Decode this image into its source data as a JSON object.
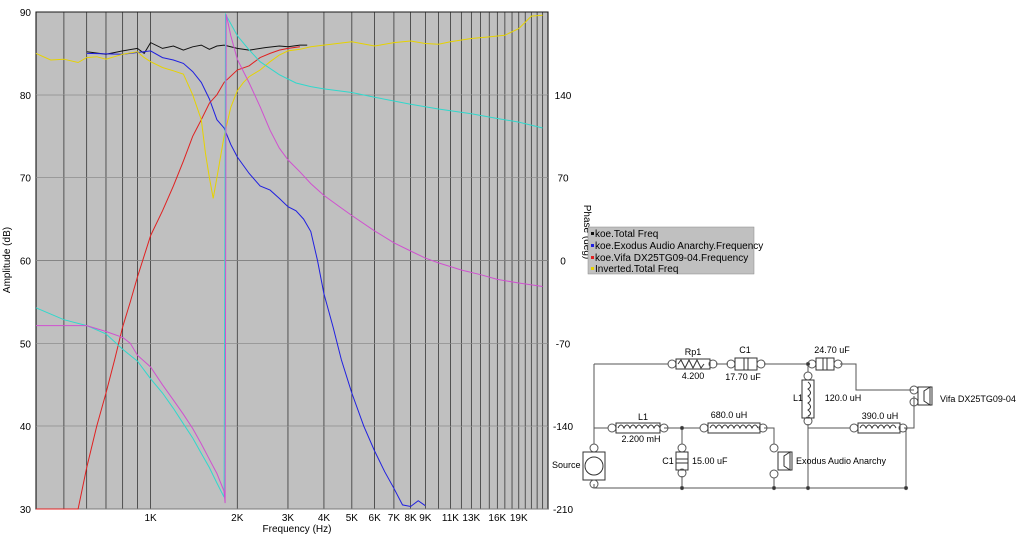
{
  "chart_data": {
    "type": "line",
    "x_scale": "log",
    "xlim": [
      400,
      24000
    ],
    "xlabel": "Frequency (Hz)",
    "x_tick_labels": [
      {
        "f": 1000,
        "label": "1K"
      },
      {
        "f": 2000,
        "label": "2K"
      },
      {
        "f": 3000,
        "label": "3K"
      },
      {
        "f": 4000,
        "label": "4K"
      },
      {
        "f": 5000,
        "label": "5K"
      },
      {
        "f": 6000,
        "label": "6K"
      },
      {
        "f": 7000,
        "label": "7K"
      },
      {
        "f": 8000,
        "label": "8K"
      },
      {
        "f": 9000,
        "label": "9K"
      },
      {
        "f": 11000,
        "label": "11K"
      },
      {
        "f": 13000,
        "label": "13K"
      },
      {
        "f": 16000,
        "label": "16K"
      },
      {
        "f": 19000,
        "label": "19K"
      }
    ],
    "ylabel_left": "Amplitude (dB)",
    "ylim_left": [
      30,
      90
    ],
    "y_ticks_left": [
      30,
      40,
      50,
      60,
      70,
      80,
      90
    ],
    "ylabel_right": "Phase (deg)",
    "ylim_right": [
      -210,
      210
    ],
    "y_ticks_right": [
      -210,
      -140,
      -70,
      0,
      70,
      140
    ],
    "grid": true,
    "legend_position": "right-middle",
    "legend": [
      {
        "name": "koe.Total Freq",
        "color": "#111111"
      },
      {
        "name": "koe.Exodus Audio Anarchy.Frequency",
        "color": "#2020e0"
      },
      {
        "name": "koe.Vifa DX25TG09-04.Frequency",
        "color": "#e02020"
      },
      {
        "name": "Inverted.Total Freq",
        "color": "#e6d200"
      }
    ],
    "series": [
      {
        "name": "koe.Total Freq",
        "color": "#111111",
        "axis": "left",
        "x": [
          600,
          700,
          800,
          900,
          950,
          1000,
          1100,
          1200,
          1300,
          1400,
          1500,
          1600,
          1700,
          1800,
          2000,
          2200,
          2500,
          2800,
          3000,
          3300,
          3500
        ],
        "y": [
          85.2,
          84.9,
          85.3,
          85.6,
          85.0,
          86.3,
          85.6,
          85.9,
          85.4,
          85.8,
          86.0,
          85.5,
          85.9,
          86.0,
          85.6,
          85.4,
          85.7,
          85.9,
          85.8,
          86.0,
          86.0
        ]
      },
      {
        "name": "koe.Exodus Audio Anarchy.Frequency",
        "color": "#2020e0",
        "axis": "left",
        "x": [
          600,
          800,
          1000,
          1100,
          1200,
          1300,
          1400,
          1500,
          1600,
          1700,
          1800,
          1900,
          2000,
          2200,
          2400,
          2600,
          2800,
          3000,
          3200,
          3400,
          3600,
          3800,
          4000,
          4300,
          4600,
          5000,
          5500,
          6000,
          6500,
          7000,
          7500,
          8000,
          8500,
          9000
        ],
        "y": [
          85.0,
          84.9,
          85.3,
          84.5,
          84.2,
          83.8,
          82.8,
          81.5,
          79.5,
          77.0,
          76.0,
          74.0,
          72.5,
          70.5,
          69.0,
          68.5,
          67.5,
          66.5,
          66.0,
          65.0,
          63.5,
          60.0,
          56.0,
          52.0,
          48.0,
          44.0,
          40.0,
          37.0,
          34.5,
          32.5,
          30.5,
          30.3,
          31.0,
          30.4
        ]
      },
      {
        "name": "koe.Vifa DX25TG09-04.Frequency",
        "color": "#e02020",
        "axis": "left",
        "x": [
          400,
          470,
          510,
          560,
          600,
          650,
          700,
          750,
          800,
          850,
          900,
          1000,
          1100,
          1200,
          1300,
          1400,
          1500,
          1600,
          1700,
          1800,
          2000,
          2200,
          2400,
          2600,
          2800,
          3000,
          3300
        ],
        "y": [
          30,
          30,
          30,
          30,
          35,
          40,
          44,
          48,
          52,
          55,
          58,
          63,
          66,
          69,
          72,
          75,
          77,
          79,
          80,
          81.5,
          83,
          83.5,
          84.5,
          85,
          85.4,
          85.6,
          85.8
        ]
      },
      {
        "name": "Inverted.Total Freq",
        "color": "#e6d200",
        "axis": "left",
        "x": [
          400,
          450,
          500,
          560,
          600,
          650,
          700,
          800,
          900,
          950,
          1000,
          1100,
          1200,
          1300,
          1400,
          1500,
          1550,
          1600,
          1650,
          1700,
          1800,
          1900,
          2000,
          2100,
          2200,
          2400,
          2600,
          2800,
          3000,
          3300,
          3600,
          4000,
          5000,
          6000,
          7000,
          8000,
          9000,
          10000,
          11000,
          13000,
          15000,
          17000,
          19000,
          21000,
          23000
        ],
        "y": [
          85.0,
          84.2,
          84.3,
          83.9,
          84.5,
          84.6,
          84.3,
          84.9,
          85.2,
          84.5,
          84.0,
          83.3,
          82.9,
          82.5,
          80.0,
          77.0,
          73.0,
          70.0,
          67.5,
          70.0,
          75.0,
          78.5,
          80.5,
          81.5,
          82.2,
          83.0,
          84.0,
          84.8,
          85.3,
          85.5,
          85.8,
          86.0,
          86.4,
          85.9,
          86.3,
          86.5,
          86.2,
          86.1,
          86.4,
          86.8,
          87.0,
          87.2,
          88.0,
          89.5,
          89.6
        ]
      },
      {
        "name": "",
        "color": "#30d8cc",
        "axis": "right",
        "x": [
          400,
          500,
          600,
          700,
          800,
          900,
          1000,
          1100,
          1200,
          1300,
          1400,
          1500,
          1600,
          1700,
          1800,
          1820,
          1900,
          2000,
          2200,
          2400,
          2800,
          3200,
          3600,
          4000,
          5000,
          6000,
          8000,
          10000,
          13000,
          16000,
          19000,
          23000
        ],
        "y": [
          -40,
          -50,
          -55,
          -62,
          -75,
          -85,
          -100,
          -112,
          -125,
          -138,
          -150,
          -163,
          -175,
          -188,
          -200,
          208,
          200,
          190,
          178,
          168,
          157,
          150,
          147,
          145,
          142,
          138,
          132,
          128,
          124,
          120,
          117,
          112
        ]
      },
      {
        "name": "",
        "color": "#d050d0",
        "axis": "right",
        "x": [
          400,
          500,
          600,
          700,
          800,
          850,
          900,
          1000,
          1100,
          1200,
          1300,
          1400,
          1500,
          1600,
          1700,
          1800,
          1815,
          1830,
          1900,
          2000,
          2200,
          2400,
          2600,
          2800,
          3000,
          3300,
          3600,
          4000,
          4500,
          5000,
          6000,
          7000,
          8000,
          9000,
          10000,
          12000,
          14000,
          16000,
          19000,
          23000
        ],
        "y": [
          -55,
          -55,
          -55,
          -60,
          -65,
          -70,
          -80,
          -90,
          -105,
          -118,
          -130,
          -142,
          -155,
          -168,
          -180,
          -195,
          -205,
          208,
          190,
          170,
          150,
          130,
          110,
          95,
          85,
          75,
          65,
          55,
          46,
          38,
          25,
          15,
          8,
          2,
          -2,
          -8,
          -12,
          -16,
          -19,
          -22
        ]
      }
    ]
  },
  "circuit": {
    "components": {
      "rp1_name": "Rp1",
      "rp1_value": "4.200",
      "c1_top_name": "C1",
      "c1_top_value": "17.70 uF",
      "c_2470_value": "24.70 uF",
      "l1_right_name": "L1",
      "l1_right_value": "120.0 uH",
      "l_390_value": "390.0 uH",
      "vifa_label": "Vifa DX25TG09-04",
      "l1_left_name": "L1",
      "l1_left_value": "2.200 mH",
      "l_680_value": "680.0 uH",
      "c1_bottom_name": "C1",
      "c1_bottom_value": "15.00 uF",
      "exodus_label": "Exodus Audio Anarchy",
      "source_label": "Source"
    }
  }
}
